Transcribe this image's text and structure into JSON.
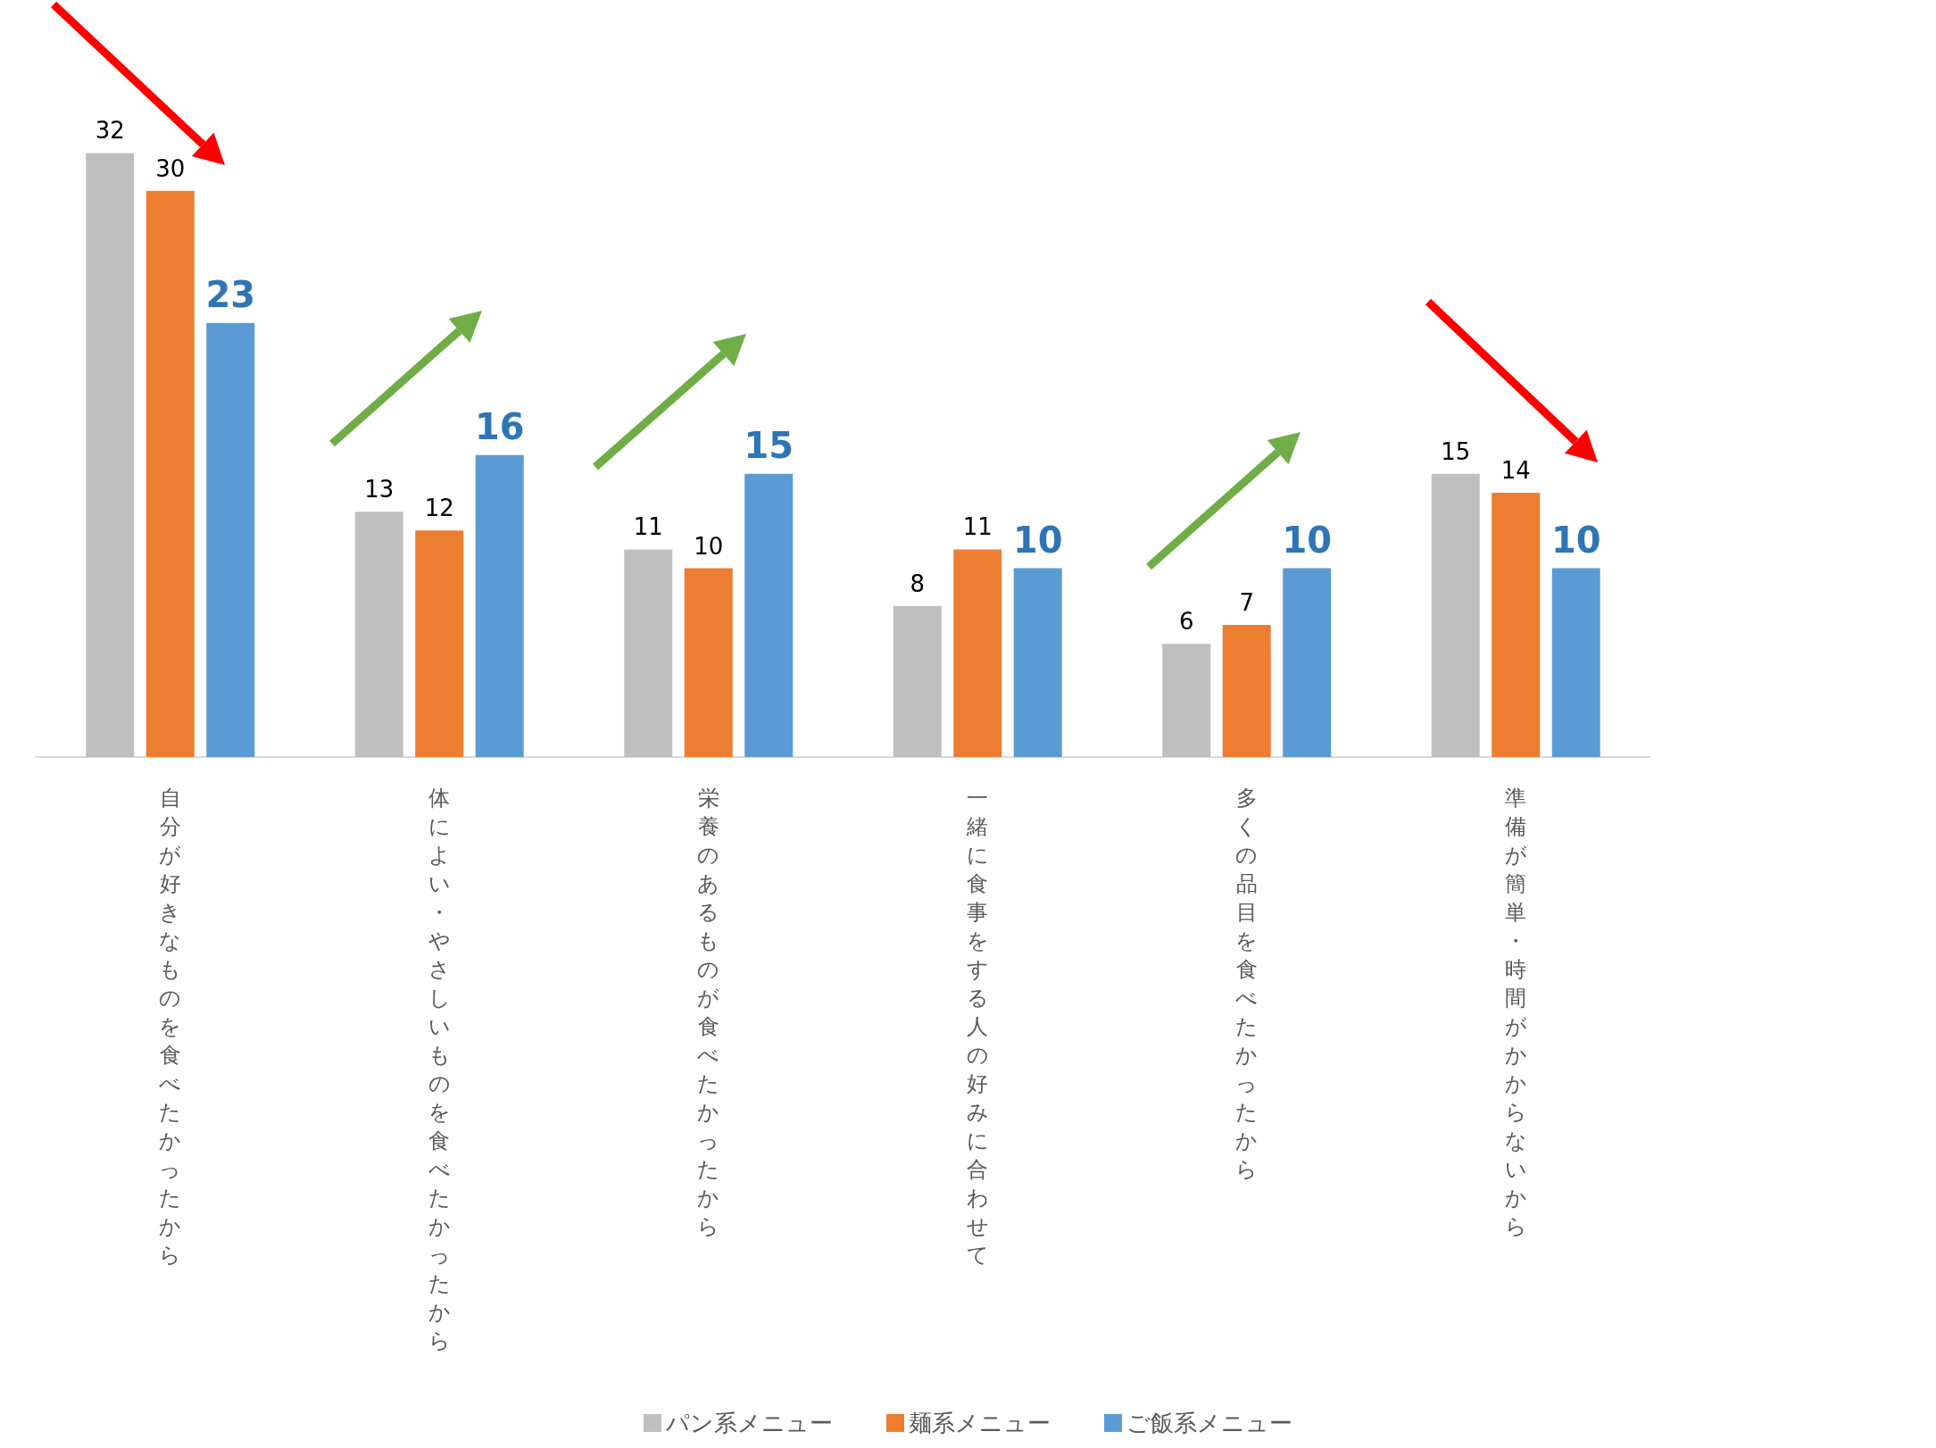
{
  "chart_data": {
    "type": "bar",
    "categories": [
      "自分が好きなものを食べたかったから",
      "体によい・やさしいものを食べたかったから",
      "栄養のあるものが食べたかったから",
      "一緒に食事をする人の好みに合わせて",
      "多くの品目を食べたかったから",
      "準備が簡単・時間がかからないから"
    ],
    "series": [
      {
        "name": "パン系メニュー",
        "color": "#bfbfbf",
        "values": [
          32,
          13,
          11,
          8,
          6,
          15
        ]
      },
      {
        "name": "麺系メニュー",
        "color": "#ed7d31",
        "values": [
          30,
          12,
          10,
          11,
          7,
          14
        ]
      },
      {
        "name": "ご飯系メニュー",
        "color": "#5b9bd5",
        "values": [
          23,
          16,
          15,
          10,
          10,
          10
        ]
      }
    ],
    "data_labels": true,
    "legend": "bottom"
  }
}
